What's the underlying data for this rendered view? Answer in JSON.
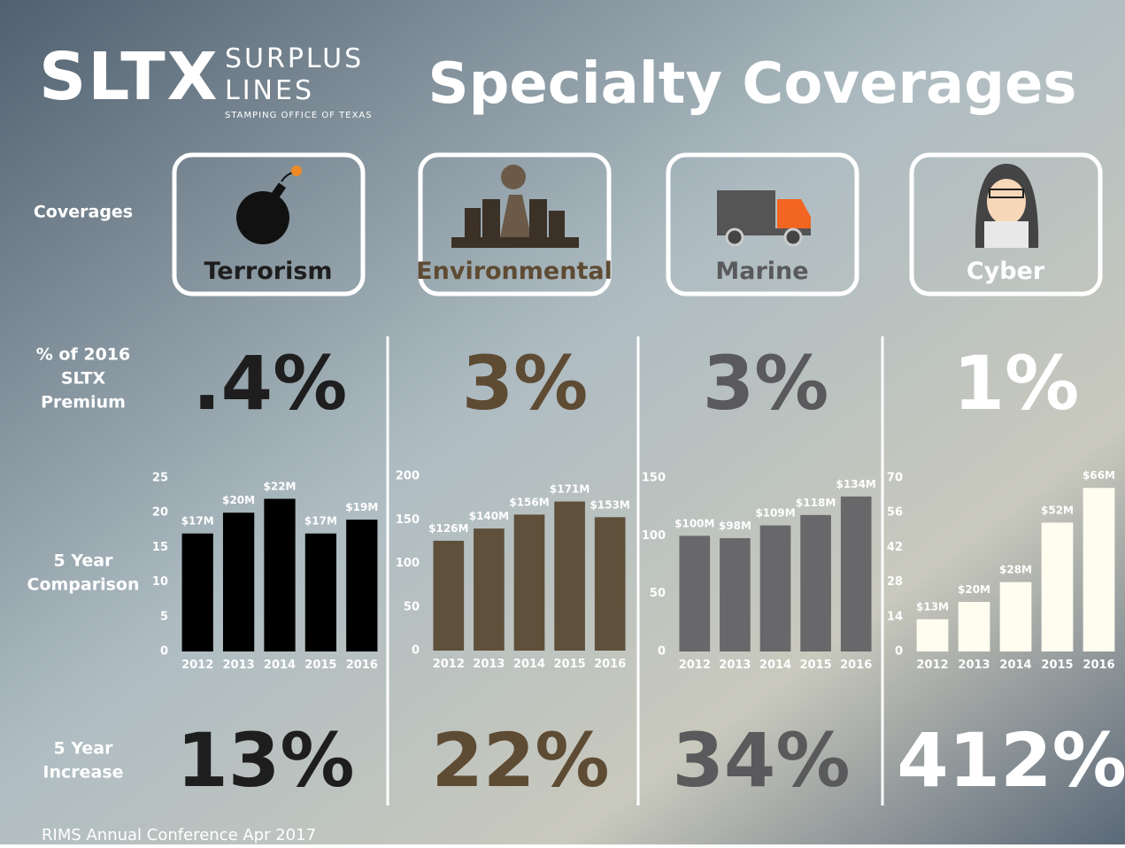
{
  "logo": {
    "main": "SLTX",
    "line1": "SURPLUS",
    "line2": "LINES",
    "tagline": "STAMPING OFFICE OF TEXAS"
  },
  "title": "Specialty Coverages",
  "row_labels": {
    "coverages": [
      "Coverages"
    ],
    "premium": [
      "% of 2016",
      "SLTX",
      "Premium"
    ],
    "comparison": [
      "5 Year",
      "Comparison"
    ],
    "increase": [
      "5 Year",
      "Increase"
    ]
  },
  "coverages": [
    {
      "name": "Terrorism",
      "premium_share": ".4%",
      "increase": "13%",
      "color": "#1e1e1e"
    },
    {
      "name": "Environmental",
      "premium_share": "3%",
      "increase": "22%",
      "color": "#5e4b33"
    },
    {
      "name": "Marine",
      "premium_share": "3%",
      "increase": "34%",
      "color": "#5a5a5c"
    },
    {
      "name": "Cyber",
      "premium_share": "1%",
      "increase": "412%",
      "color": "#ffffff"
    }
  ],
  "footer": "RIMS Annual Conference Apr 2017",
  "chart_data": [
    {
      "type": "bar",
      "categories": [
        "2012",
        "2013",
        "2014",
        "2015",
        "2016"
      ],
      "values": [
        17,
        20,
        22,
        17,
        19
      ],
      "value_labels": [
        "$17M",
        "$20M",
        "$22M",
        "$17M",
        "$19M"
      ],
      "color": "#000000",
      "ylim": [
        0,
        25
      ],
      "yticks": [
        0,
        5,
        10,
        15,
        20,
        25
      ]
    },
    {
      "type": "bar",
      "categories": [
        "2012",
        "2013",
        "2014",
        "2015",
        "2016"
      ],
      "values": [
        126,
        140,
        156,
        171,
        153
      ],
      "value_labels": [
        "$126M",
        "$140M",
        "$156M",
        "$171M",
        "$153M"
      ],
      "color": "#5f503b",
      "ylim": [
        0,
        200
      ],
      "yticks": [
        0,
        50,
        100,
        150,
        200
      ]
    },
    {
      "type": "bar",
      "categories": [
        "2012",
        "2013",
        "2014",
        "2015",
        "2016"
      ],
      "values": [
        100,
        98,
        109,
        118,
        134
      ],
      "value_labels": [
        "$100M",
        "$98M",
        "$109M",
        "$118M",
        "$134M"
      ],
      "color": "#68686a",
      "ylim": [
        0,
        150
      ],
      "yticks": [
        0,
        50,
        100,
        150
      ]
    },
    {
      "type": "bar",
      "categories": [
        "2012",
        "2013",
        "2014",
        "2015",
        "2016"
      ],
      "values": [
        13,
        20,
        28,
        52,
        66
      ],
      "value_labels": [
        "$13M",
        "$20M",
        "$28M",
        "$52M",
        "$66M"
      ],
      "color": "#fffdf0",
      "ylim": [
        0,
        70
      ],
      "yticks": [
        0,
        14,
        28,
        42,
        56,
        70
      ]
    }
  ]
}
